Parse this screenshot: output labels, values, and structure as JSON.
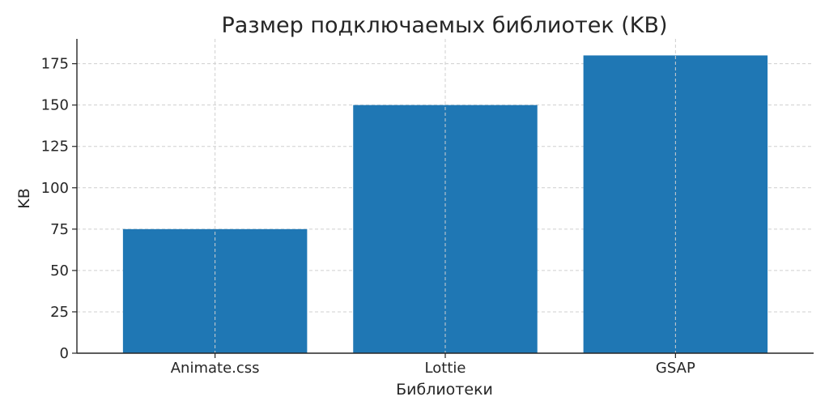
{
  "chart_data": {
    "type": "bar",
    "title": "Размер подключаемых библиотек (KB)",
    "xlabel": "Библиотеки",
    "ylabel": "KB",
    "categories": [
      "Animate.css",
      "Lottie",
      "GSAP"
    ],
    "values": [
      75,
      150,
      180
    ],
    "ylim": [
      0,
      190
    ],
    "yticks": [
      0,
      25,
      50,
      75,
      100,
      125,
      150,
      175
    ],
    "grid": true,
    "bar_color": "#1f77b4"
  }
}
